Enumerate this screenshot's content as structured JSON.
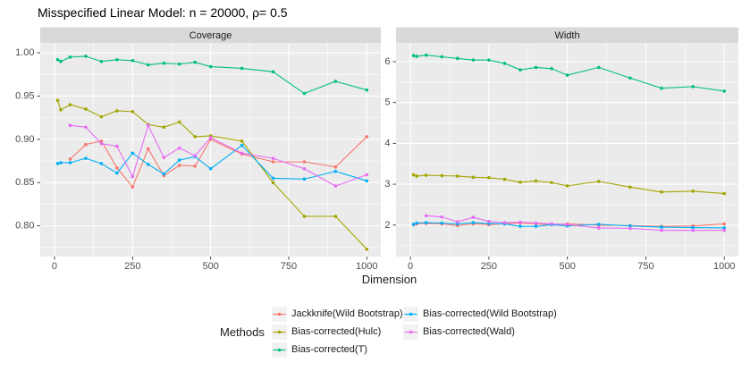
{
  "title": "Misspecified Linear Model: n = 20000, ρ= 0.5",
  "legend": {
    "title": "Methods",
    "columns": [
      [
        {
          "label": "Jackknife(Wild Bootstrap)",
          "color": "#F8766D"
        },
        {
          "label": "Bias-corrected(Hulc)",
          "color": "#A3A500"
        },
        {
          "label": "Bias-corrected(T)",
          "color": "#00BF7D"
        }
      ],
      [
        {
          "label": "Bias-corrected(Wild Bootstrap)",
          "color": "#00B0F6"
        },
        {
          "label": "Bias-corrected(Wald)",
          "color": "#E76BF3"
        }
      ]
    ]
  },
  "chart_data": {
    "type": "line",
    "title": "Misspecified Linear Model: n = 20000, ρ= 0.5",
    "xlabel": "Dimension",
    "x": [
      10,
      20,
      50,
      100,
      150,
      200,
      250,
      300,
      350,
      400,
      450,
      500,
      600,
      700,
      800,
      900,
      1000
    ],
    "xticks": [
      0,
      250,
      500,
      750,
      1000
    ],
    "xtick_labels": [
      "0",
      "250",
      "500",
      "750",
      "1000"
    ],
    "x_minor_ticks": [
      125,
      375,
      625,
      875
    ],
    "xlim": [
      -45.8,
      1045.0
    ],
    "grid": "on",
    "legend_position": "bottom",
    "panels": [
      {
        "title": "Coverage",
        "yticks": [
          1.0,
          0.95,
          0.9,
          0.85,
          0.8
        ],
        "ytick_labels": [
          "1.00",
          "0.95",
          "0.90",
          "0.85",
          "0.80"
        ],
        "ylim": [
          0.7645,
          1.0114
        ],
        "series": [
          {
            "name": "Jackknife(Wild Bootstrap)",
            "color": "#F8766D",
            "values": [
              null,
              null,
              0.877,
              0.894,
              0.898,
              0.867,
              0.845,
              0.889,
              0.858,
              0.87,
              0.869,
              0.9,
              0.883,
              0.874,
              0.874,
              0.868,
              0.903
            ]
          },
          {
            "name": "Bias-corrected(Hulc)",
            "color": "#A3A500",
            "values": [
              0.945,
              0.934,
              0.94,
              0.935,
              0.926,
              0.933,
              0.932,
              0.917,
              0.914,
              0.92,
              0.903,
              0.904,
              0.898,
              0.85,
              0.811,
              0.811,
              0.773
            ]
          },
          {
            "name": "Bias-corrected(T)",
            "color": "#00BF7D",
            "values": [
              0.992,
              0.99,
              0.995,
              0.996,
              0.99,
              0.992,
              0.991,
              0.986,
              0.988,
              0.987,
              0.989,
              0.984,
              0.982,
              0.978,
              0.953,
              0.967,
              0.957
            ]
          },
          {
            "name": "Bias-corrected(Wild Bootstrap)",
            "color": "#00B0F6",
            "values": [
              0.872,
              0.873,
              0.873,
              0.878,
              0.872,
              0.861,
              0.884,
              0.871,
              0.86,
              0.876,
              0.88,
              0.866,
              0.893,
              0.855,
              0.854,
              0.863,
              0.852
            ]
          },
          {
            "name": "Bias-corrected(Wald)",
            "color": "#E76BF3",
            "values": [
              null,
              null,
              0.916,
              0.914,
              0.895,
              0.892,
              0.857,
              0.916,
              0.879,
              0.89,
              0.881,
              0.902,
              0.884,
              0.878,
              0.866,
              0.846,
              0.859
            ]
          }
        ]
      },
      {
        "title": "Width",
        "yticks": [
          6,
          5,
          4,
          3,
          2
        ],
        "ytick_labels": [
          "6",
          "5",
          "4",
          "3",
          "2"
        ],
        "ylim": [
          1.2294,
          6.4595
        ],
        "series": [
          {
            "name": "Jackknife(Wild Bootstrap)",
            "color": "#F8766D",
            "values": [
              2.01,
              2.03,
              2.04,
              2.03,
              1.99,
              2.03,
              2.01,
              2.03,
              2.05,
              2.03,
              2.01,
              2.03,
              2.0,
              1.99,
              1.97,
              1.98,
              2.03
            ]
          },
          {
            "name": "Bias-corrected(Hulc)",
            "color": "#A3A500",
            "values": [
              3.23,
              3.2,
              3.22,
              3.21,
              3.2,
              3.17,
              3.16,
              3.12,
              3.05,
              3.08,
              3.04,
              2.96,
              3.07,
              2.93,
              2.81,
              2.83,
              2.77
            ]
          },
          {
            "name": "Bias-corrected(T)",
            "color": "#00BF7D",
            "values": [
              6.15,
              6.13,
              6.16,
              6.12,
              6.08,
              6.04,
              6.04,
              5.96,
              5.8,
              5.86,
              5.83,
              5.67,
              5.86,
              5.6,
              5.35,
              5.39,
              5.28
            ]
          },
          {
            "name": "Bias-corrected(Wild Bootstrap)",
            "color": "#00B0F6",
            "values": [
              2.02,
              2.05,
              2.06,
              2.05,
              2.03,
              2.06,
              2.04,
              2.03,
              1.97,
              1.97,
              2.01,
              1.98,
              2.02,
              1.98,
              1.95,
              1.94,
              1.93
            ]
          },
          {
            "name": "Bias-corrected(Wald)",
            "color": "#E76BF3",
            "values": [
              null,
              null,
              2.23,
              2.2,
              2.08,
              2.19,
              2.09,
              2.06,
              2.07,
              2.05,
              2.03,
              2.01,
              1.93,
              1.92,
              1.87,
              1.87,
              1.87
            ]
          }
        ]
      }
    ],
    "styles": {
      "panel_bg": "#EBEBEB",
      "strip_bg": "#D9D9D9",
      "grid_color": "#FFFFFF",
      "axis_text_color": "#4D4D4D",
      "strip_text_color": "#1A1A1A",
      "tick_mark_color": "#333333"
    }
  }
}
